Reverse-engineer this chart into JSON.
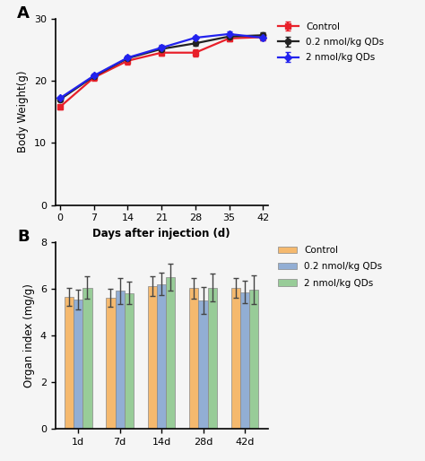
{
  "panel_A": {
    "title": "A",
    "xlabel": "Days after injection (d)",
    "ylabel": "Body Weight(g)",
    "xlim": [
      -1,
      43
    ],
    "ylim": [
      0,
      30
    ],
    "xticks": [
      0,
      7,
      14,
      21,
      28,
      35,
      42
    ],
    "yticks": [
      0,
      10,
      20,
      30
    ],
    "days": [
      0,
      7,
      14,
      21,
      28,
      35,
      42
    ],
    "control_mean": [
      15.8,
      20.5,
      23.2,
      24.5,
      24.5,
      26.8,
      27.0
    ],
    "control_err": [
      0.35,
      0.5,
      0.55,
      0.45,
      0.55,
      0.45,
      0.5
    ],
    "low_dose_mean": [
      17.0,
      20.7,
      23.6,
      25.1,
      26.0,
      27.1,
      27.3
    ],
    "low_dose_err": [
      0.25,
      0.35,
      0.4,
      0.45,
      0.35,
      0.45,
      0.45
    ],
    "high_dose_mean": [
      17.2,
      20.8,
      23.7,
      25.3,
      26.9,
      27.5,
      26.9
    ],
    "high_dose_err": [
      0.25,
      0.35,
      0.4,
      0.45,
      0.35,
      0.45,
      0.45
    ],
    "control_color": "#e8202a",
    "low_dose_color": "#222222",
    "high_dose_color": "#2222ee",
    "legend_labels": [
      "Control",
      "0.2 nmol/kg QDs",
      "2 nmol/kg QDs"
    ]
  },
  "panel_B": {
    "title": "B",
    "xlabel": "",
    "ylabel": "Organ index (mg/g)",
    "ylim": [
      0,
      8
    ],
    "yticks": [
      0,
      2,
      4,
      6,
      8
    ],
    "categories": [
      "1d",
      "7d",
      "14d",
      "28d",
      "42d"
    ],
    "control_mean": [
      5.65,
      5.6,
      6.1,
      6.02,
      6.05
    ],
    "control_err": [
      0.38,
      0.38,
      0.42,
      0.45,
      0.42
    ],
    "low_dose_mean": [
      5.55,
      5.9,
      6.2,
      5.5,
      5.85
    ],
    "low_dose_err": [
      0.42,
      0.55,
      0.48,
      0.58,
      0.48
    ],
    "high_dose_mean": [
      6.05,
      5.82,
      6.48,
      6.05,
      5.95
    ],
    "high_dose_err": [
      0.48,
      0.48,
      0.58,
      0.58,
      0.62
    ],
    "control_color": "#f5b96e",
    "low_dose_color": "#92aed4",
    "high_dose_color": "#98cc98",
    "legend_labels": [
      "Control",
      "0.2 nmol/kg QDs",
      "2 nmol/kg QDs"
    ],
    "bar_width": 0.22,
    "bg_color": "#f0f0f0"
  },
  "fig_bg": "#f5f5f5"
}
